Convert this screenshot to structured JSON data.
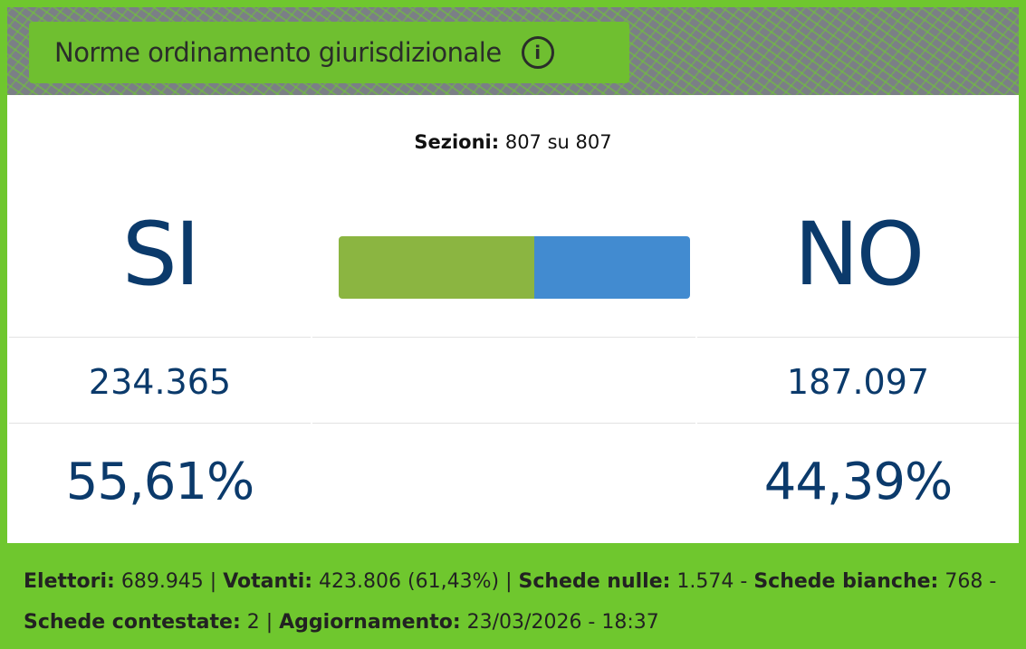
{
  "title": "Norme ordinamento giurisdizionale",
  "info_icon": "info-icon",
  "sezioni": {
    "label": "Sezioni:",
    "value": "807 su 807"
  },
  "si": {
    "label": "SI",
    "votes": "234.365",
    "percent": "55,61%",
    "fraction": 0.5561,
    "color": "#8bb541"
  },
  "no": {
    "label": "NO",
    "votes": "187.097",
    "percent": "44,39%",
    "fraction": 0.4439,
    "color": "#428bd0"
  },
  "footer": {
    "elettori_label": "Elettori:",
    "elettori": "689.945",
    "votanti_label": "Votanti:",
    "votanti": "423.806 (61,43%)",
    "nulle_label": "Schede nulle:",
    "nulle": "1.574",
    "bianche_label": "Schede bianche:",
    "bianche": "768",
    "contestate_label": "Schede contestate:",
    "contestate": "2",
    "aggiornamento_label": "Aggiornamento:",
    "aggiornamento": "23/03/2026 - 18:37"
  }
}
